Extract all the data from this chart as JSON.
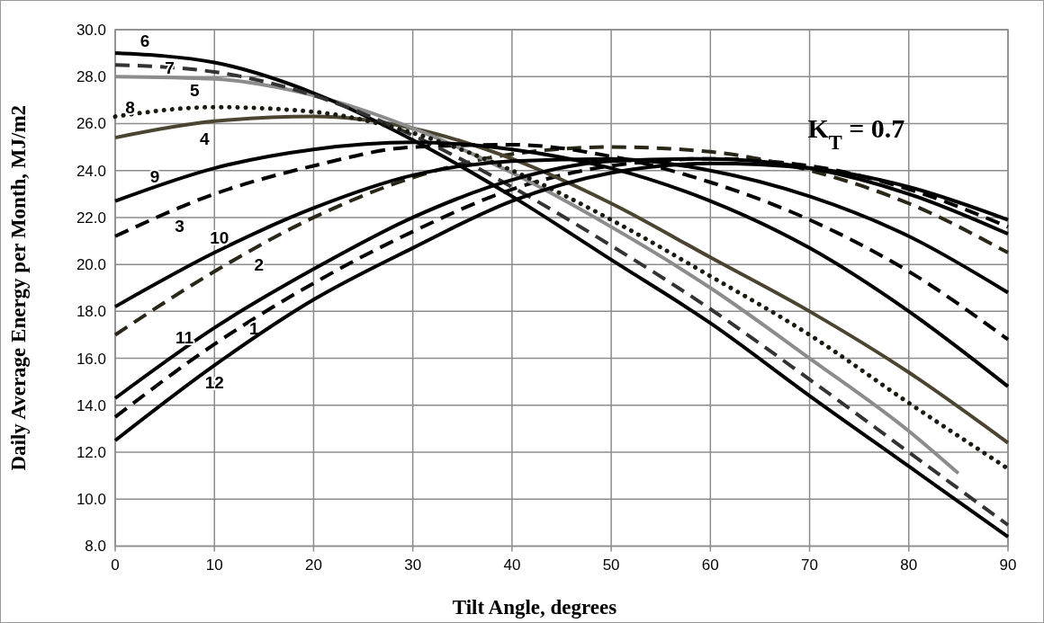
{
  "chart_data": {
    "type": "line",
    "xlabel": "Tilt Angle, degrees",
    "ylabel": "Daily Average Energy per Month, MJ/m2",
    "annotations": [
      "K$_{T}$ = 0.7"
    ],
    "x": [
      0,
      10,
      20,
      30,
      40,
      50,
      60,
      70,
      80,
      90
    ],
    "series": [
      {
        "name": "1",
        "color": "#000000",
        "line_style": "dashed",
        "values": [
          13.5,
          16.6,
          19.2,
          21.4,
          23.2,
          24.2,
          24.5,
          24.2,
          23.2,
          21.6
        ]
      },
      {
        "name": "2",
        "color": "#2a2618",
        "line_style": "dashed",
        "values": [
          17.0,
          19.7,
          22.0,
          23.7,
          24.7,
          25.0,
          24.8,
          24.0,
          22.6,
          20.5
        ]
      },
      {
        "name": "3",
        "color": "#000000",
        "line_style": "dashed",
        "values": [
          21.2,
          23.0,
          24.2,
          25.0,
          25.1,
          24.6,
          23.5,
          21.9,
          19.7,
          16.8
        ]
      },
      {
        "name": "4",
        "color": "#4a4430",
        "line_style": "solid",
        "values": [
          25.4,
          26.1,
          26.3,
          25.8,
          24.5,
          22.6,
          20.3,
          18.0,
          15.4,
          12.4
        ]
      },
      {
        "name": "5",
        "color": "#8c8c8c",
        "line_style": "solid",
        "x": [
          0,
          10,
          20,
          30,
          40,
          50,
          60,
          70,
          80,
          85
        ],
        "values": [
          28.0,
          27.9,
          27.2,
          25.8,
          23.9,
          21.6,
          19.0,
          16.0,
          12.9,
          11.1
        ]
      },
      {
        "name": "6",
        "color": "#000000",
        "line_style": "solid",
        "values": [
          29.0,
          28.6,
          27.3,
          25.3,
          22.9,
          20.2,
          17.5,
          14.4,
          11.4,
          8.4
        ]
      },
      {
        "name": "7",
        "color": "#333333",
        "line_style": "dashed",
        "values": [
          28.5,
          28.2,
          27.2,
          25.5,
          23.3,
          20.8,
          18.1,
          15.1,
          12.0,
          8.9
        ]
      },
      {
        "name": "8",
        "color": "#1a1a10",
        "line_style": "dotted",
        "values": [
          26.3,
          26.7,
          26.5,
          25.6,
          24.0,
          21.9,
          19.5,
          17.0,
          14.1,
          11.3
        ]
      },
      {
        "name": "9",
        "color": "#000000",
        "line_style": "solid",
        "values": [
          22.7,
          24.1,
          24.9,
          25.2,
          24.9,
          24.1,
          22.7,
          20.7,
          18.0,
          14.8
        ]
      },
      {
        "name": "10",
        "color": "#000000",
        "line_style": "solid",
        "values": [
          18.2,
          20.5,
          22.4,
          23.8,
          24.4,
          24.5,
          24.0,
          22.9,
          21.2,
          18.8
        ]
      },
      {
        "name": "11",
        "color": "#000000",
        "line_style": "solid",
        "values": [
          14.3,
          17.3,
          19.8,
          22.0,
          23.6,
          24.4,
          24.5,
          24.1,
          23.0,
          21.3
        ]
      },
      {
        "name": "12",
        "color": "#000000",
        "line_style": "solid",
        "values": [
          12.5,
          15.7,
          18.5,
          20.7,
          22.7,
          23.9,
          24.3,
          24.1,
          23.3,
          21.9
        ]
      }
    ],
    "xlim": [
      0,
      90
    ],
    "xticks": [
      0,
      10,
      20,
      30,
      40,
      50,
      60,
      70,
      80,
      90
    ],
    "ylim": [
      8,
      30
    ],
    "yticks": [
      {
        "value": 8,
        "label": "8.0"
      },
      {
        "value": 10,
        "label": "10.0"
      },
      {
        "value": 12,
        "label": "12.0"
      },
      {
        "value": 14,
        "label": "14.0"
      },
      {
        "value": 16,
        "label": "16.0"
      },
      {
        "value": 18,
        "label": "18.0"
      },
      {
        "value": 20,
        "label": "20.0"
      },
      {
        "value": 22,
        "label": "22.0"
      },
      {
        "value": 24,
        "label": "24.0"
      },
      {
        "value": 26,
        "label": "26.0"
      },
      {
        "value": 28,
        "label": "28.0"
      },
      {
        "value": 30,
        "label": "30.0"
      }
    ],
    "grid": true,
    "legend": false,
    "marker": "none"
  }
}
